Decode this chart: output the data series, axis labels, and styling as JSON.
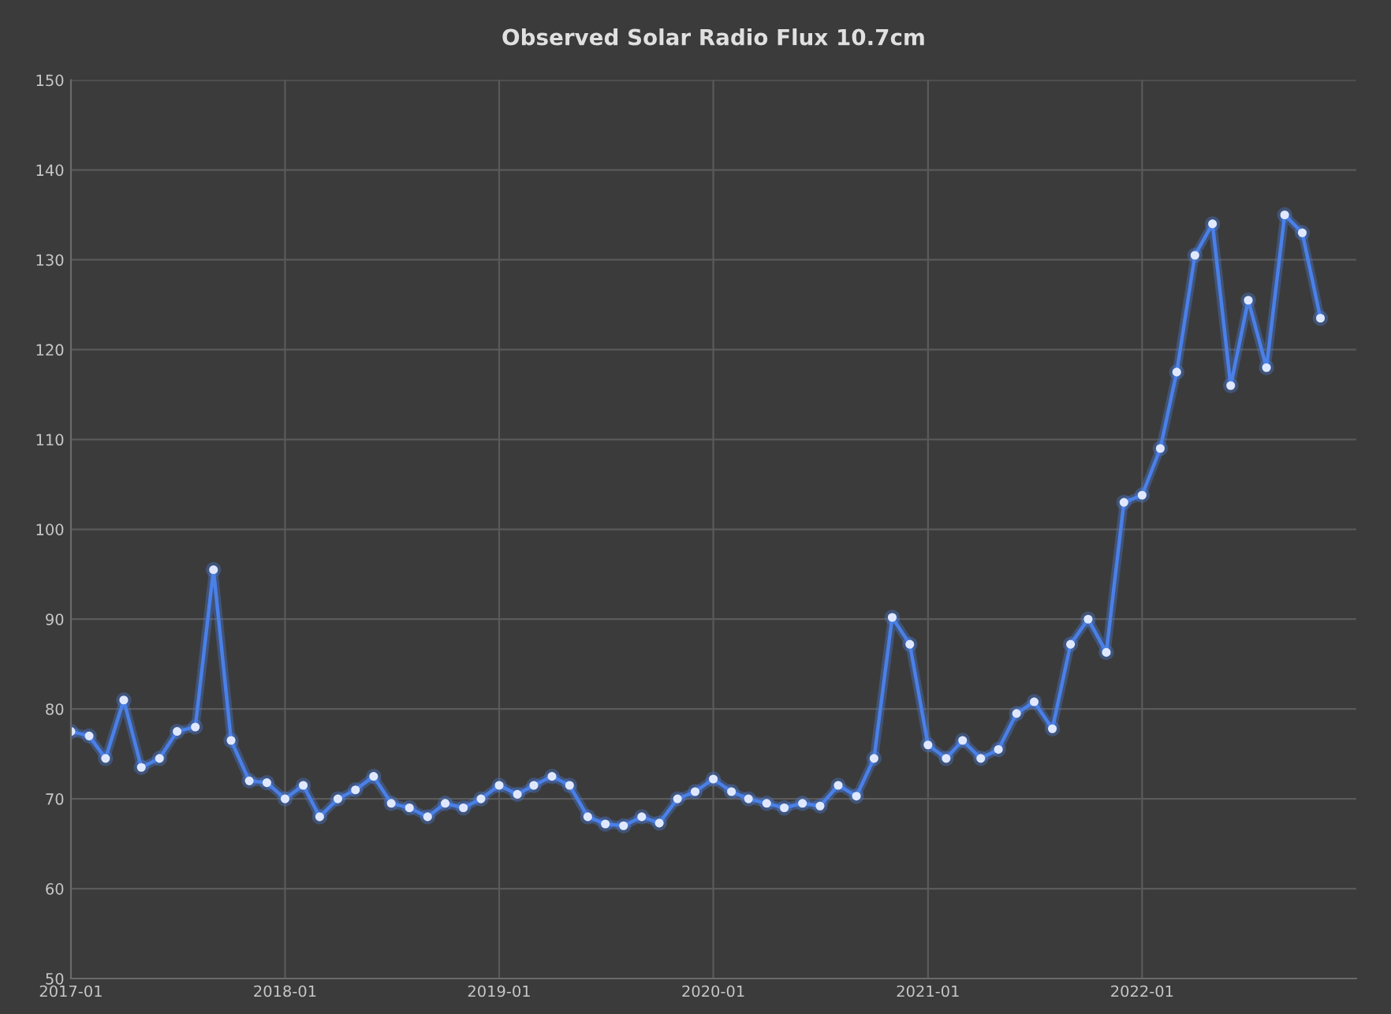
{
  "chart_data": {
    "type": "line",
    "title": "Observed Solar Radio Flux 10.7cm",
    "x": [
      "2017-01",
      "2017-02",
      "2017-03",
      "2017-04",
      "2017-05",
      "2017-06",
      "2017-07",
      "2017-08",
      "2017-09",
      "2017-10",
      "2017-11",
      "2017-12",
      "2018-01",
      "2018-02",
      "2018-03",
      "2018-04",
      "2018-05",
      "2018-06",
      "2018-07",
      "2018-08",
      "2018-09",
      "2018-10",
      "2018-11",
      "2018-12",
      "2019-01",
      "2019-02",
      "2019-03",
      "2019-04",
      "2019-05",
      "2019-06",
      "2019-07",
      "2019-08",
      "2019-09",
      "2019-10",
      "2019-11",
      "2019-12",
      "2020-01",
      "2020-02",
      "2020-03",
      "2020-04",
      "2020-05",
      "2020-06",
      "2020-07",
      "2020-08",
      "2020-09",
      "2020-10",
      "2020-11",
      "2020-12",
      "2021-01",
      "2021-02",
      "2021-03",
      "2021-04",
      "2021-05",
      "2021-06",
      "2021-07",
      "2021-08",
      "2021-09",
      "2021-10",
      "2021-11",
      "2021-12",
      "2022-01",
      "2022-02",
      "2022-03",
      "2022-04",
      "2022-05",
      "2022-06",
      "2022-07",
      "2022-08",
      "2022-09",
      "2022-10",
      "2022-11"
    ],
    "series": [
      {
        "color": "#4a80e8",
        "values": [
          77.5,
          77,
          74.5,
          81,
          73.5,
          74.5,
          77.5,
          78,
          95.5,
          76.5,
          72,
          71.8,
          70,
          71.5,
          68,
          70,
          71,
          72.5,
          69.5,
          69,
          68,
          69.5,
          69,
          70,
          71.5,
          70.5,
          71.5,
          72.5,
          71.5,
          68,
          67.2,
          67,
          68,
          67.3,
          70,
          70.8,
          72.2,
          70.8,
          70,
          69.5,
          69,
          69.5,
          69.2,
          71.5,
          70.3,
          74.5,
          90.2,
          87.2,
          76,
          74.5,
          76.5,
          74.5,
          75.5,
          79.5,
          80.8,
          77.8,
          87.2,
          90,
          86.3,
          103,
          103.8,
          109,
          117.5,
          130.5,
          134,
          116,
          125.5,
          118,
          135,
          133,
          123.5
        ]
      }
    ],
    "xlim": [
      "2017-01",
      "2023-01"
    ],
    "xticks": [
      "2017-01",
      "2018-01",
      "2019-01",
      "2020-01",
      "2021-01",
      "2022-01"
    ],
    "ylim": [
      50,
      150
    ],
    "yticks": [
      50,
      60,
      70,
      80,
      90,
      100,
      110,
      120,
      130,
      140,
      150
    ],
    "grid": true,
    "marker": "circle",
    "line_style": "solid"
  }
}
